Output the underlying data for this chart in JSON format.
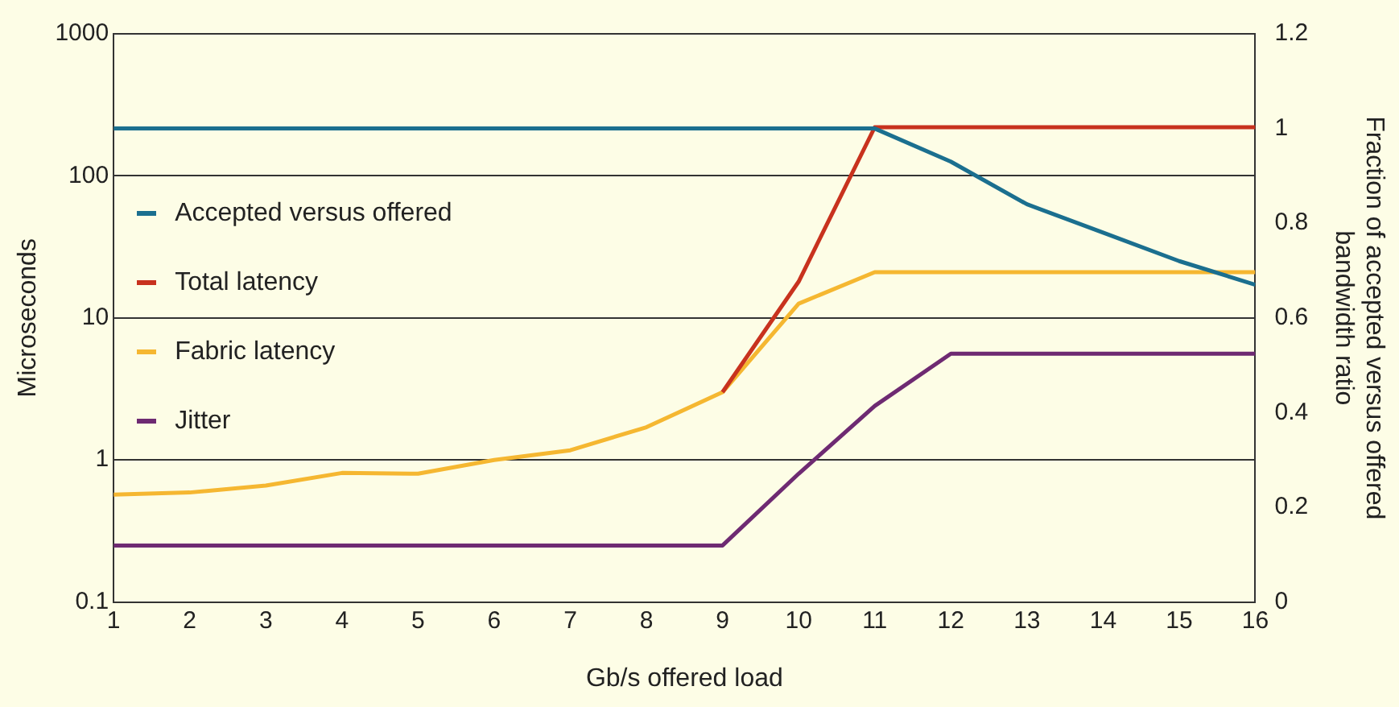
{
  "chart_data": {
    "type": "line",
    "xlabel": "Gb/s offered load",
    "ylabel": "Microseconds",
    "y2label": "Fraction of accepted versus offered bandwidth ratio",
    "x": [
      1,
      2,
      3,
      4,
      5,
      6,
      7,
      8,
      9,
      10,
      11,
      12,
      13,
      14,
      15,
      16
    ],
    "series": [
      {
        "name": "Accepted versus offered",
        "color": "#1b6f8f",
        "axis": "y2",
        "values": [
          1,
          1,
          1,
          1,
          1,
          1,
          1,
          1,
          1,
          1,
          1,
          0.93,
          0.84,
          0.78,
          0.72,
          0.67
        ]
      },
      {
        "name": "Total latency",
        "color": "#c8321e",
        "values": [
          null,
          null,
          null,
          null,
          null,
          null,
          null,
          null,
          3,
          18,
          220,
          220,
          220,
          220,
          220,
          220
        ]
      },
      {
        "name": "Fabric latency",
        "color": "#f5b731",
        "values": [
          0.57,
          0.59,
          0.66,
          0.81,
          0.8,
          1,
          1.17,
          1.7,
          3,
          12.6,
          21,
          21,
          21,
          21,
          21,
          21
        ]
      },
      {
        "name": "Jitter",
        "color": "#6e2a72",
        "values": [
          0.25,
          0.25,
          0.25,
          0.25,
          0.25,
          0.25,
          0.25,
          0.25,
          0.25,
          0.8,
          2.4,
          5.6,
          5.6,
          5.6,
          5.6,
          5.6
        ]
      }
    ],
    "log": "y",
    "ylim": [
      0.1,
      1000
    ],
    "yticks": [
      0.1,
      1,
      10,
      100,
      1000
    ],
    "y2lim": [
      0,
      1.2
    ],
    "y2ticks": [
      0,
      0.2,
      0.4,
      0.6,
      0.8,
      1,
      1.2
    ],
    "xlim": [
      1,
      16
    ],
    "xticks": [
      1,
      2,
      3,
      4,
      5,
      6,
      7,
      8,
      9,
      10,
      11,
      12,
      13,
      14,
      15,
      16
    ],
    "grid": "y",
    "legend": "top left",
    "marker": "none",
    "line_style": "solid"
  }
}
